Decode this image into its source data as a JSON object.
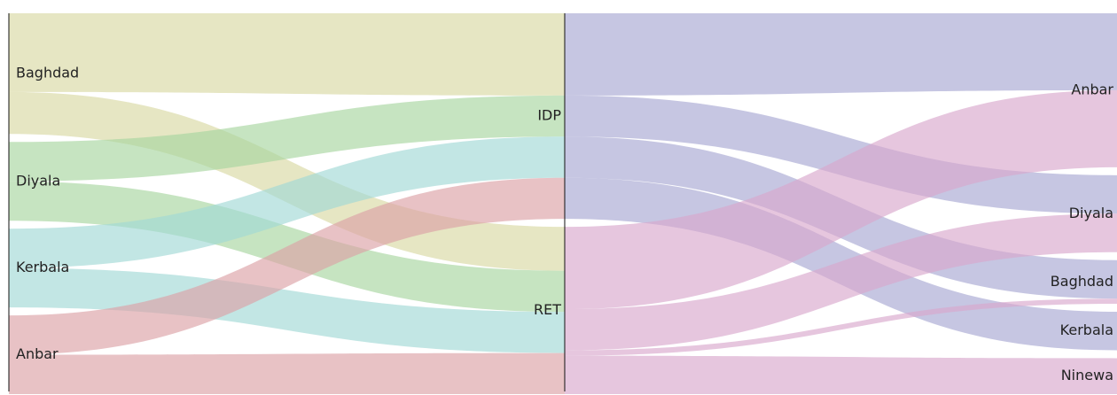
{
  "chart_data": {
    "type": "sankey",
    "stages": [
      {
        "name": "origin",
        "nodes": [
          {
            "id": "Baghdad",
            "label": "Baghdad",
            "color": "#d9d9a3"
          },
          {
            "id": "Diyala",
            "label": "Diyala",
            "color": "#a8d5a0"
          },
          {
            "id": "Kerbala",
            "label": "Kerbala",
            "color": "#a2d8d6"
          },
          {
            "id": "Anbar",
            "label": "Anbar",
            "color": "#dba2a6"
          }
        ]
      },
      {
        "name": "status",
        "nodes": [
          {
            "id": "IDP",
            "label": "IDP",
            "color": "#a8a8d2"
          },
          {
            "id": "RET",
            "label": "RET",
            "color": "#d8a8cc"
          }
        ]
      },
      {
        "name": "destination",
        "nodes": [
          {
            "id": "Anbar_d",
            "label": "Anbar"
          },
          {
            "id": "Diyala_d",
            "label": "Diyala"
          },
          {
            "id": "Baghdad_d",
            "label": "Baghdad"
          },
          {
            "id": "Kerbala_d",
            "label": "Kerbala"
          },
          {
            "id": "Ninewa_d",
            "label": "Ninewa"
          }
        ]
      }
    ],
    "links_stage1": [
      {
        "source": "Baghdad",
        "target": "IDP",
        "value": 90
      },
      {
        "source": "Baghdad",
        "target": "RET",
        "value": 48
      },
      {
        "source": "Diyala",
        "target": "IDP",
        "value": 45
      },
      {
        "source": "Diyala",
        "target": "RET",
        "value": 45
      },
      {
        "source": "Kerbala",
        "target": "IDP",
        "value": 45
      },
      {
        "source": "Kerbala",
        "target": "RET",
        "value": 45
      },
      {
        "source": "Anbar",
        "target": "IDP",
        "value": 45
      },
      {
        "source": "Anbar",
        "target": "RET",
        "value": 45
      }
    ],
    "links_stage2": [
      {
        "source": "IDP",
        "target": "Anbar_d",
        "value": 90
      },
      {
        "source": "IDP",
        "target": "Diyala_d",
        "value": 45
      },
      {
        "source": "IDP",
        "target": "Baghdad_d",
        "value": 45
      },
      {
        "source": "IDP",
        "target": "Kerbala_d",
        "value": 45
      },
      {
        "source": "RET",
        "target": "Anbar_d",
        "value": 90
      },
      {
        "source": "RET",
        "target": "Diyala_d",
        "value": 45
      },
      {
        "source": "RET",
        "target": "Baghdad_d",
        "value": 6
      },
      {
        "source": "RET",
        "target": "Ninewa_d",
        "value": 42
      }
    ]
  }
}
